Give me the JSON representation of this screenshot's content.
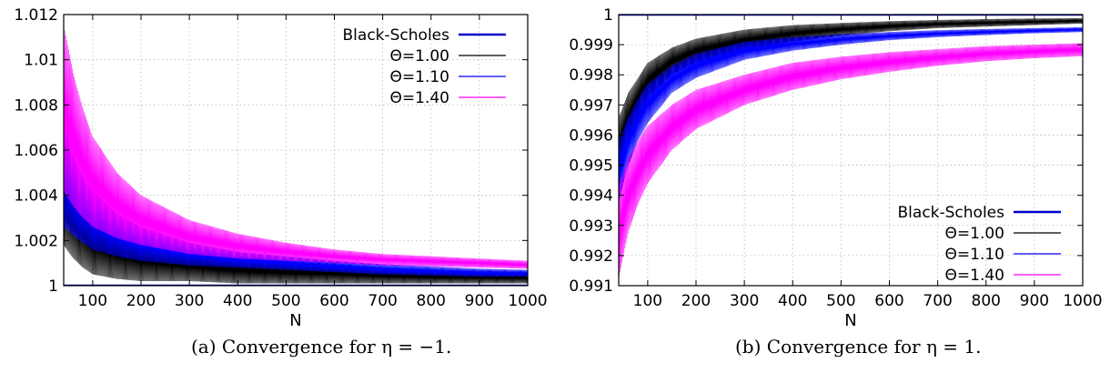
{
  "chart_data": [
    {
      "type": "line",
      "caption": "(a) Convergence for η = −1.",
      "xlabel": "N",
      "ylabel": "",
      "xlim": [
        40,
        1000
      ],
      "ylim": [
        1.0,
        1.012
      ],
      "xticks": [
        100,
        200,
        300,
        400,
        500,
        600,
        700,
        800,
        900,
        1000
      ],
      "xtick_labels": [
        "100",
        "200",
        "300",
        "400",
        "500",
        "600",
        "700",
        "800",
        "900",
        "1000"
      ],
      "yticks": [
        1.0,
        1.002,
        1.004,
        1.006,
        1.008,
        1.01,
        1.012
      ],
      "ytick_labels": [
        "1",
        "1.002",
        "1.004",
        "1.006",
        "1.008",
        "1.01",
        "1.012"
      ],
      "grid": true,
      "legend_position": "top-right",
      "series": [
        {
          "name": "Black-Scholes",
          "color": "#0000cc",
          "x": [
            40,
            1000
          ],
          "upper": [
            1.0,
            1.0
          ],
          "lower": [
            1.0,
            1.0
          ]
        },
        {
          "name": "Θ=1.00",
          "color": "#000000",
          "x": [
            40,
            60,
            80,
            100,
            150,
            200,
            300,
            400,
            500,
            600,
            700,
            800,
            900,
            1000
          ],
          "upper": [
            1.0048,
            1.0044,
            1.0038,
            1.0032,
            1.0026,
            1.0021,
            1.0016,
            1.0013,
            1.0011,
            1.001,
            1.0008,
            1.0007,
            1.00065,
            1.0006
          ],
          "lower": [
            1.0018,
            1.0012,
            1.0008,
            1.0005,
            1.0003,
            1.0002,
            1.0002,
            1.0001,
            1.0001,
            1.0001,
            1.0001,
            1.0001,
            1.0001,
            1.0001
          ]
        },
        {
          "name": "Θ=1.10",
          "color": "#0000ff",
          "x": [
            40,
            60,
            80,
            100,
            150,
            200,
            300,
            400,
            500,
            600,
            700,
            800,
            900,
            1000
          ],
          "upper": [
            1.0072,
            1.0058,
            1.0048,
            1.0042,
            1.0032,
            1.0026,
            1.0019,
            1.0015,
            1.0013,
            1.0011,
            1.00095,
            1.00085,
            1.00075,
            1.0007
          ],
          "lower": [
            1.0026,
            1.0022,
            1.0019,
            1.0016,
            1.0013,
            1.0011,
            1.0009,
            1.0008,
            1.0007,
            1.0006,
            1.0005,
            1.00045,
            1.0004,
            1.0004
          ]
        },
        {
          "name": "Θ=1.40",
          "color": "#ff00ff",
          "x": [
            40,
            60,
            80,
            100,
            150,
            200,
            300,
            400,
            500,
            600,
            700,
            800,
            900,
            1000
          ],
          "upper": [
            1.0115,
            1.0094,
            1.0078,
            1.0066,
            1.005,
            1.004,
            1.0029,
            1.0023,
            1.0019,
            1.0016,
            1.0014,
            1.0013,
            1.0012,
            1.0011
          ],
          "lower": [
            1.0042,
            1.0035,
            1.003,
            1.0026,
            1.0021,
            1.0018,
            1.0014,
            1.0012,
            1.0011,
            1.001,
            1.0009,
            1.00085,
            1.0008,
            1.00075
          ]
        }
      ]
    },
    {
      "type": "line",
      "caption": "(b) Convergence for η = 1.",
      "xlabel": "N",
      "ylabel": "",
      "xlim": [
        40,
        1000
      ],
      "ylim": [
        0.991,
        1.0
      ],
      "xticks": [
        100,
        200,
        300,
        400,
        500,
        600,
        700,
        800,
        900,
        1000
      ],
      "xtick_labels": [
        "100",
        "200",
        "300",
        "400",
        "500",
        "600",
        "700",
        "800",
        "900",
        "1000"
      ],
      "yticks": [
        0.991,
        0.992,
        0.993,
        0.994,
        0.995,
        0.996,
        0.997,
        0.998,
        0.999,
        1.0
      ],
      "ytick_labels": [
        "0.991",
        "0.992",
        "0.993",
        "0.994",
        "0.995",
        "0.996",
        "0.997",
        "0.998",
        "0.999",
        "1"
      ],
      "grid": true,
      "legend_position": "bottom-right",
      "series": [
        {
          "name": "Black-Scholes",
          "color": "#0000cc",
          "x": [
            40,
            1000
          ],
          "upper": [
            1.0,
            1.0
          ],
          "lower": [
            1.0,
            1.0
          ]
        },
        {
          "name": "Θ=1.00",
          "color": "#000000",
          "x": [
            40,
            60,
            80,
            100,
            150,
            200,
            300,
            400,
            500,
            600,
            700,
            800,
            900,
            1000
          ],
          "upper": [
            0.9966,
            0.9974,
            0.9979,
            0.9984,
            0.9989,
            0.9992,
            0.9995,
            0.99965,
            0.99972,
            0.99978,
            0.99982,
            0.99985,
            0.99987,
            0.99988
          ],
          "lower": [
            0.9946,
            0.9958,
            0.9966,
            0.9972,
            0.998,
            0.9984,
            0.9988,
            0.9991,
            0.9993,
            0.99945,
            0.99955,
            0.9996,
            0.99965,
            0.9997
          ]
        },
        {
          "name": "Θ=1.10",
          "color": "#0000ff",
          "x": [
            40,
            60,
            80,
            100,
            150,
            200,
            300,
            400,
            500,
            600,
            700,
            800,
            900,
            1000
          ],
          "upper": [
            0.9958,
            0.9966,
            0.9972,
            0.9977,
            0.9983,
            0.9987,
            0.9991,
            0.99925,
            0.99935,
            0.99942,
            0.99948,
            0.99952,
            0.99955,
            0.99958
          ],
          "lower": [
            0.9937,
            0.995,
            0.9958,
            0.9964,
            0.9974,
            0.9979,
            0.9985,
            0.9988,
            0.999,
            0.99915,
            0.99925,
            0.99932,
            0.99938,
            0.99942
          ]
        },
        {
          "name": "Θ=1.40",
          "color": "#ff00ff",
          "x": [
            40,
            60,
            80,
            100,
            150,
            200,
            300,
            400,
            500,
            600,
            700,
            800,
            900,
            1000
          ],
          "upper": [
            0.9943,
            0.9952,
            0.9958,
            0.9963,
            0.997,
            0.9975,
            0.998,
            0.9984,
            0.9986,
            0.99875,
            0.99885,
            0.99895,
            0.999,
            0.99905
          ],
          "lower": [
            0.9912,
            0.9928,
            0.9937,
            0.9944,
            0.9955,
            0.9962,
            0.997,
            0.9975,
            0.99785,
            0.9981,
            0.9983,
            0.99845,
            0.99855,
            0.99862
          ]
        }
      ]
    }
  ]
}
